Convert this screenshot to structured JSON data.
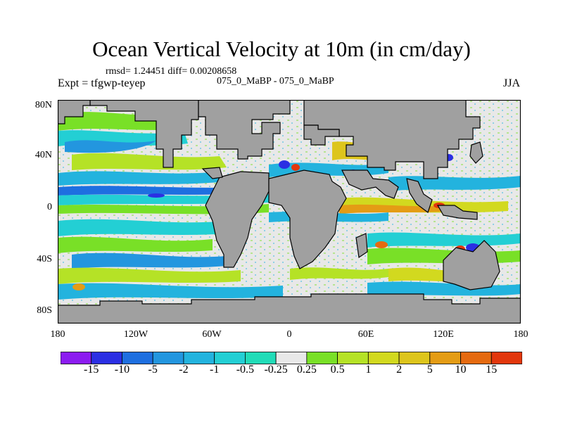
{
  "title": "Ocean Vertical Velocity at 10m (in cm/day)",
  "stats_line": "rmsd= 1.24451 diff= 0.00208658",
  "experiment_label": "Expt = tfgwp-teyep",
  "case_label": "075_0_MaBP - 075_0_MaBP",
  "season_label": "JJA",
  "latitude_ticks": [
    "80N",
    "40N",
    "0",
    "40S",
    "80S"
  ],
  "longitude_ticks": [
    "180",
    "120W",
    "60W",
    "0",
    "60E",
    "120E",
    "180"
  ],
  "colorbar": {
    "colors": [
      "#8c1cf0",
      "#2b2fe3",
      "#1e6fe0",
      "#2396df",
      "#23b3de",
      "#23cfd4",
      "#21dcb8",
      "#e8e8e8",
      "#79e027",
      "#b5e226",
      "#d2d91f",
      "#ddc51c",
      "#e49c15",
      "#e56a10",
      "#e2370d"
    ],
    "labels": [
      "-15",
      "-10",
      "-5",
      "-2",
      "-1",
      "-0.5",
      "-0.25",
      "0.25",
      "0.5",
      "1",
      "2",
      "5",
      "10",
      "15"
    ]
  },
  "land_color": "#a0a0a0"
}
